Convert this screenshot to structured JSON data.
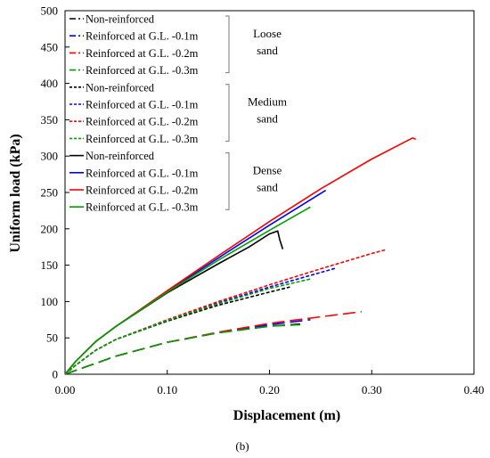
{
  "chart_data": {
    "type": "line",
    "caption": "(b)",
    "xlabel": "Displacement (m)",
    "ylabel": "Uniform load (kPa)",
    "xlim": [
      0,
      0.4
    ],
    "ylim": [
      0,
      500
    ],
    "x_ticks": [
      0,
      0.1,
      0.2,
      0.3,
      0.4
    ],
    "x_tick_labels": [
      "0.00",
      "0.10",
      "0.20",
      "0.30",
      "0.40"
    ],
    "y_ticks": [
      0,
      50,
      100,
      150,
      200,
      250,
      300,
      350,
      400,
      450,
      500
    ],
    "y_tick_labels": [
      "0",
      "50",
      "100",
      "150",
      "200",
      "250",
      "300",
      "350",
      "400",
      "450",
      "500"
    ],
    "grid": false,
    "legend_position": "top-left",
    "groups": [
      {
        "label_lines": [
          "Loose",
          "sand"
        ],
        "dash": "longdash",
        "series": [
          {
            "name": "Non-reinforced",
            "color": "#000000",
            "x": [
              0,
              0.02,
              0.05,
              0.1,
              0.15,
              0.2,
              0.23
            ],
            "y": [
              0,
              10,
              25,
              44,
              57,
              66,
              69
            ]
          },
          {
            "name": "Reinforced at G.L. -0.1m",
            "color": "#0000ff",
            "x": [
              0,
              0.02,
              0.05,
              0.1,
              0.15,
              0.2,
              0.24
            ],
            "y": [
              0,
              10,
              25,
              44,
              57,
              68,
              75
            ]
          },
          {
            "name": "Reinforced at G.L. -0.2m",
            "color": "#ff0000",
            "x": [
              0,
              0.02,
              0.05,
              0.1,
              0.15,
              0.2,
              0.25,
              0.29
            ],
            "y": [
              0,
              10,
              25,
              44,
              58,
              70,
              79,
              86
            ]
          },
          {
            "name": "Reinforced at G.L. -0.3m",
            "color": "#00a000",
            "x": [
              0,
              0.02,
              0.05,
              0.1,
              0.15,
              0.2,
              0.23
            ],
            "y": [
              0,
              10,
              25,
              44,
              57,
              66,
              68
            ]
          }
        ]
      },
      {
        "label_lines": [
          "Medium",
          "sand"
        ],
        "dash": "shortdash",
        "series": [
          {
            "name": "Non-reinforced",
            "color": "#000000",
            "x": [
              0,
              0.01,
              0.03,
              0.05,
              0.1,
              0.15,
              0.2,
              0.22
            ],
            "y": [
              0,
              12,
              33,
              48,
              73,
              95,
              113,
              120
            ]
          },
          {
            "name": "Reinforced at G.L. -0.1m",
            "color": "#0000ff",
            "x": [
              0,
              0.01,
              0.03,
              0.05,
              0.1,
              0.15,
              0.2,
              0.25,
              0.265
            ],
            "y": [
              0,
              12,
              33,
              48,
              74,
              98,
              120,
              140,
              146
            ]
          },
          {
            "name": "Reinforced at G.L. -0.2m",
            "color": "#ff0000",
            "x": [
              0,
              0.01,
              0.03,
              0.05,
              0.1,
              0.15,
              0.2,
              0.25,
              0.3,
              0.313
            ],
            "y": [
              0,
              12,
              33,
              48,
              75,
              100,
              123,
              145,
              166,
              171
            ]
          },
          {
            "name": "Reinforced at G.L. -0.3m",
            "color": "#00a000",
            "x": [
              0,
              0.01,
              0.03,
              0.05,
              0.1,
              0.15,
              0.2,
              0.24
            ],
            "y": [
              0,
              12,
              33,
              48,
              74,
              97,
              118,
              131
            ]
          }
        ]
      },
      {
        "label_lines": [
          "Dense",
          "sand"
        ],
        "dash": "solid",
        "series": [
          {
            "name": "Non-reinforced",
            "color": "#000000",
            "x": [
              0,
              0.01,
              0.03,
              0.05,
              0.1,
              0.15,
              0.18,
              0.2,
              0.208,
              0.21,
              0.213
            ],
            "y": [
              0,
              17,
              45,
              66,
              112,
              152,
              175,
              193,
              197,
              185,
              172
            ]
          },
          {
            "name": "Reinforced at G.L. -0.1m",
            "color": "#0000ff",
            "x": [
              0,
              0.01,
              0.03,
              0.05,
              0.1,
              0.15,
              0.2,
              0.255
            ],
            "y": [
              0,
              17,
              45,
              66,
              114,
              160,
              205,
              253
            ]
          },
          {
            "name": "Reinforced at G.L. -0.2m",
            "color": "#ff0000",
            "x": [
              0,
              0.01,
              0.03,
              0.05,
              0.1,
              0.15,
              0.2,
              0.25,
              0.3,
              0.34,
              0.343
            ],
            "y": [
              0,
              17,
              45,
              66,
              115,
              163,
              210,
              255,
              296,
              325,
              323
            ]
          },
          {
            "name": "Reinforced at G.L. -0.3m",
            "color": "#00a000",
            "x": [
              0,
              0.01,
              0.03,
              0.05,
              0.1,
              0.15,
              0.2,
              0.24
            ],
            "y": [
              0,
              17,
              45,
              66,
              113,
              157,
              198,
              230
            ]
          }
        ]
      }
    ]
  }
}
